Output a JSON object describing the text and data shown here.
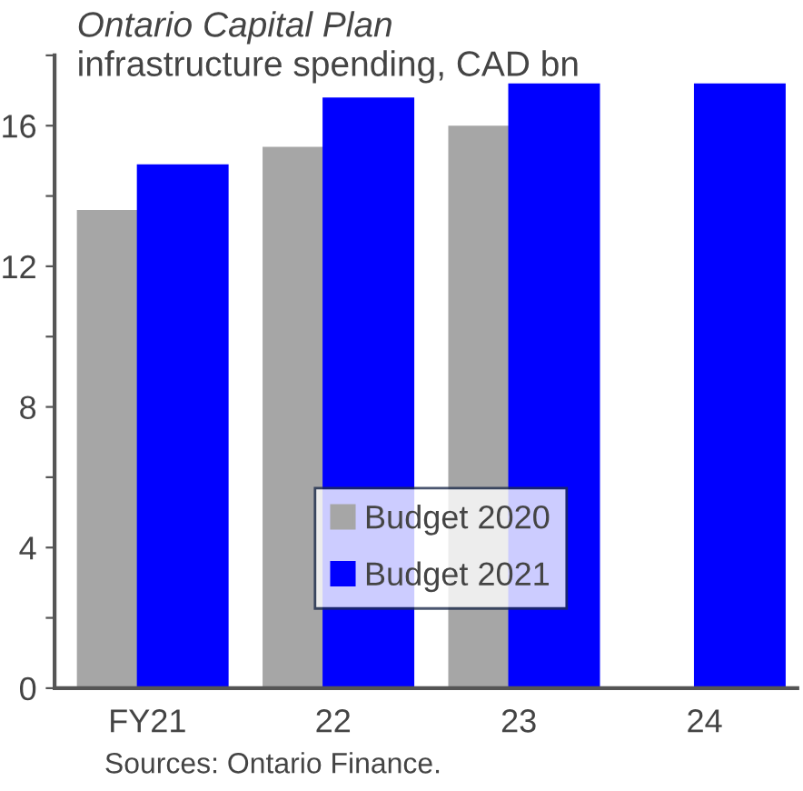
{
  "chart_data": {
    "type": "bar",
    "title": "Ontario Capital Plan",
    "subtitle": "infrastructure spending, CAD bn",
    "categories": [
      "FY21",
      "22",
      "23",
      "24"
    ],
    "series": [
      {
        "name": "Budget 2020",
        "color": "#a6a6a6",
        "values": [
          13.6,
          15.4,
          16.0,
          null
        ]
      },
      {
        "name": "Budget 2021",
        "color": "#0000ff",
        "values": [
          14.9,
          16.8,
          17.2,
          17.2
        ]
      }
    ],
    "ylim": [
      0,
      18
    ],
    "yticks": [
      0,
      {
        "value": 2,
        "label": null
      },
      4,
      {
        "value": 6,
        "label": null
      },
      8,
      {
        "value": 10,
        "label": null
      },
      12,
      {
        "value": 14,
        "label": null
      },
      16,
      {
        "value": 18,
        "label": null
      }
    ],
    "grid": false,
    "legend": "bottom",
    "annotations": [
      "Sources: Ontario Finance."
    ]
  }
}
